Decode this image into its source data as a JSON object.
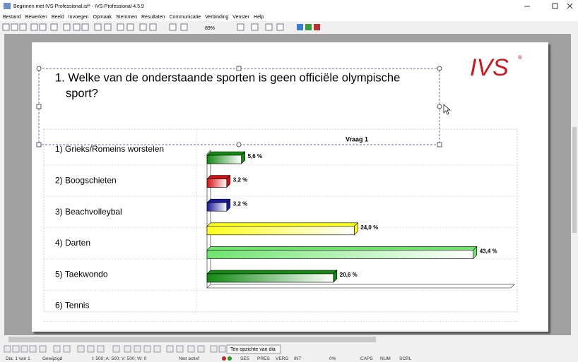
{
  "window": {
    "title": "Beginnen met IVS-Professional.isf* - IVS-Professional 4.5.9"
  },
  "menu": [
    "Bestand",
    "Bewerken",
    "Beeld",
    "Invoegen",
    "Opmaak",
    "Stemmen",
    "Resultaten",
    "Communicatie",
    "Verbinding",
    "Venster",
    "Help"
  ],
  "toolbar": {
    "zoom": "89%"
  },
  "slide": {
    "logo": "IVS",
    "question": [
      "1. Welke van de onderstaande sporten is geen officiële olympische",
      "sport?"
    ]
  },
  "chart_data": {
    "type": "bar",
    "orientation": "horizontal",
    "title": "Vraag 1",
    "categories": [
      "1) Grieks/Romeins worstelen",
      "2) Boogschieten",
      "3) Beachvolleybal",
      "4) Darten",
      "5) Taekwondo",
      "6) Tennis"
    ],
    "values": [
      5.6,
      3.2,
      3.2,
      24.0,
      43.4,
      20.6
    ],
    "value_labels": [
      "5,6 %",
      "3,2 %",
      "3,2 %",
      "24,0 %",
      "43,4 %",
      "20,6 %"
    ],
    "colors": [
      "#138a13",
      "#d61010",
      "#1a1a9c",
      "#ffff1e",
      "#6fe46f",
      "#138a13"
    ],
    "xlim": [
      0,
      50
    ]
  },
  "bottom_toolbar": {
    "button": "Ten opzichte van dia"
  },
  "status": [
    "Dia: 1 van 1",
    "Gewijzigd",
    "I: 500; A: 500; V: 500; W: 0",
    "Niet actief",
    "SES",
    "PRES",
    "VERG",
    "INT",
    "0%",
    "CAPS",
    "NUM",
    "SCRL"
  ]
}
